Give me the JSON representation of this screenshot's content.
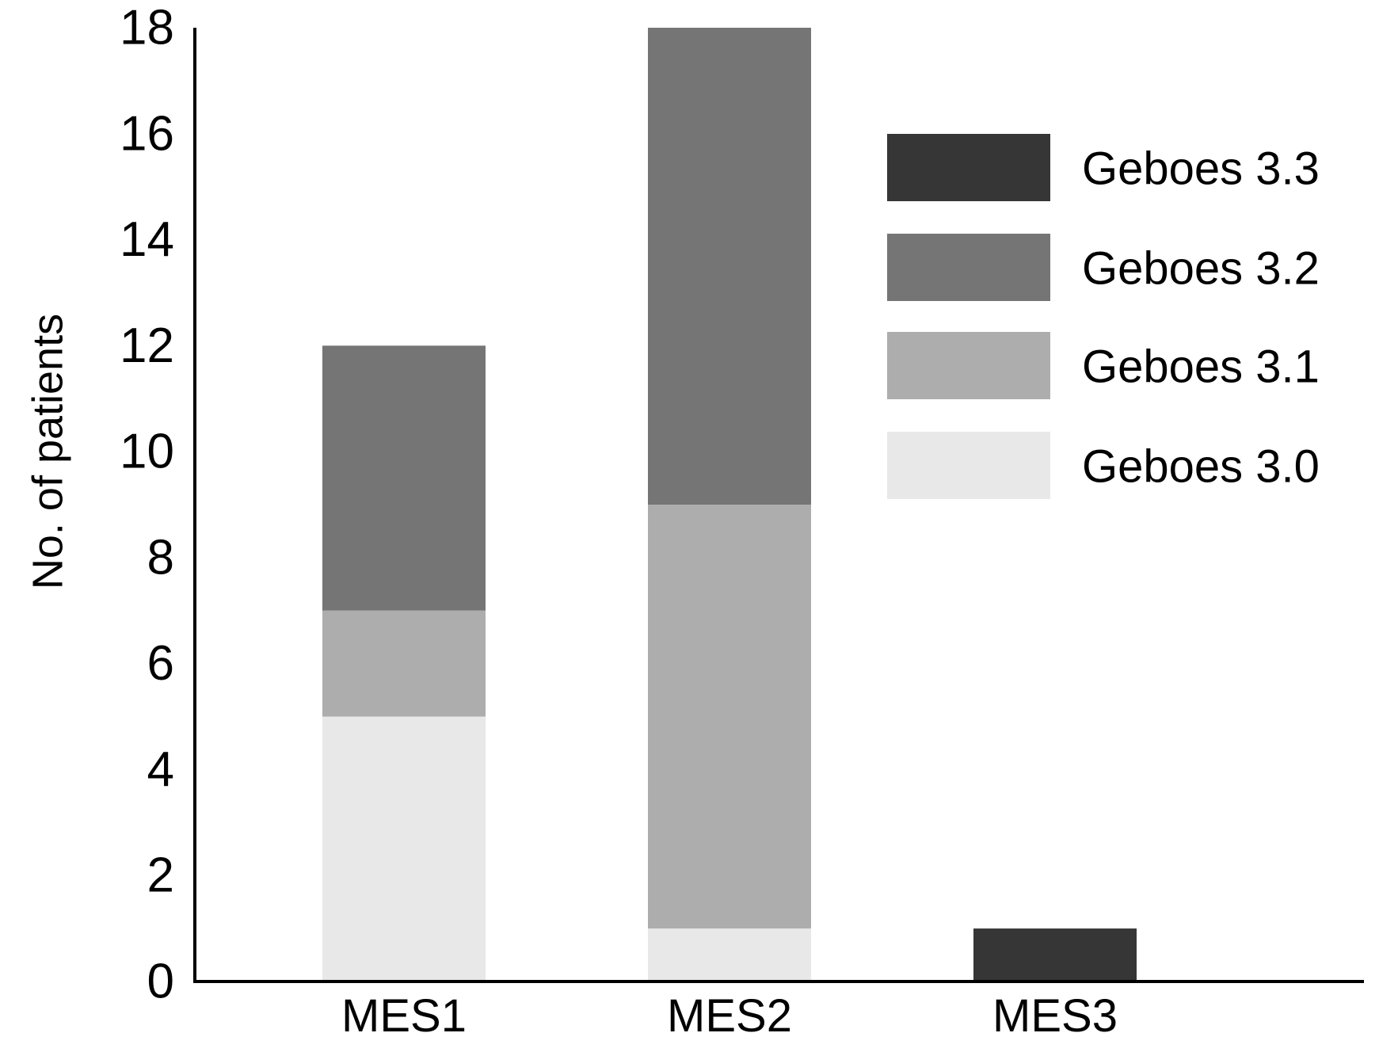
{
  "chart_data": {
    "type": "bar",
    "stacked": true,
    "title": "",
    "xlabel": "",
    "ylabel": "No. of patients",
    "ylim": [
      0,
      18
    ],
    "yticks": [
      0,
      2,
      4,
      6,
      8,
      10,
      12,
      14,
      16,
      18
    ],
    "categories": [
      "MES1",
      "MES2",
      "MES3"
    ],
    "series": [
      {
        "name": "Geboes 3.0",
        "color": "#e8e8e8",
        "values": [
          5,
          1,
          0
        ]
      },
      {
        "name": "Geboes 3.1",
        "color": "#adadad",
        "values": [
          2,
          8,
          0
        ]
      },
      {
        "name": "Geboes 3.2",
        "color": "#757575",
        "values": [
          5,
          9,
          0
        ]
      },
      {
        "name": "Geboes 3.3",
        "color": "#363636",
        "values": [
          0,
          0,
          1
        ]
      }
    ],
    "legend_order": [
      "Geboes 3.3",
      "Geboes 3.2",
      "Geboes 3.1",
      "Geboes 3.0"
    ],
    "legend_position": "top-right",
    "grid": false
  }
}
